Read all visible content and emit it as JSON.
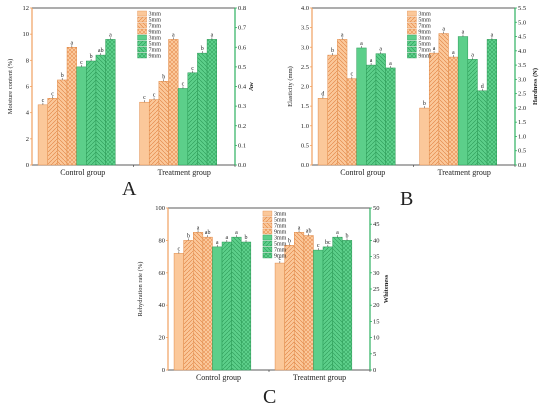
{
  "panels": [
    {
      "id": "A",
      "letter": "A",
      "ylabel_left": "Moisture content (%)",
      "ylabel_right": "Aw",
      "left_color": "#f0a060",
      "right_color": "#2db060",
      "left_ticks": [
        "0",
        "2",
        "4",
        "6",
        "8",
        "10",
        "12"
      ],
      "right_ticks": [
        "0.0",
        "0.1",
        "0.2",
        "0.3",
        "0.4",
        "0.5",
        "0.6",
        "0.7",
        "0.8"
      ],
      "groups": [
        "Control group",
        "Treatment group"
      ],
      "legend": [
        "3mm",
        "5mm",
        "7mm",
        "9mm",
        "3mm",
        "5mm",
        "7mm",
        "9mm"
      ]
    },
    {
      "id": "B",
      "letter": "B",
      "ylabel_left": "Elasticity (mm)",
      "ylabel_right": "Hardness (N)",
      "left_color": "#f0a060",
      "right_color": "#2db060",
      "left_ticks": [
        "0.0",
        "0.5",
        "1.0",
        "1.5",
        "2.0",
        "2.5",
        "3.0",
        "3.5",
        "4.0"
      ],
      "right_ticks": [
        "0.0",
        "0.5",
        "1.0",
        "1.5",
        "2.0",
        "2.5",
        "3.0",
        "3.5",
        "4.0",
        "4.5",
        "5.0",
        "5.5"
      ],
      "groups": [
        "Control group",
        "Treatment group"
      ],
      "legend": [
        "3mm",
        "5mm",
        "7mm",
        "9mm",
        "3mm",
        "5mm",
        "7mm",
        "9mm"
      ]
    },
    {
      "id": "C",
      "letter": "C",
      "ylabel_left": "Rehydration rate (%)",
      "ylabel_right": "Whiteness",
      "left_color": "#f0a060",
      "right_color": "#2db060",
      "left_ticks": [
        "0",
        "20",
        "40",
        "60",
        "80",
        "100"
      ],
      "right_ticks": [
        "0",
        "5",
        "10",
        "15",
        "20",
        "25",
        "30",
        "35",
        "40",
        "45",
        "50"
      ],
      "groups": [
        "Control group",
        "Treatment group"
      ],
      "legend": [
        "3mm",
        "5mm",
        "7mm",
        "9mm",
        "3mm",
        "5mm",
        "7mm",
        "9mm"
      ]
    }
  ],
  "chart_data": [
    {
      "type": "bar",
      "panel": "A",
      "categories": [
        "Control group",
        "Treatment group"
      ],
      "ylabel": "Moisture content (%)",
      "ylabel_right": "Aw",
      "ylim": [
        0,
        12
      ],
      "ylim_right": [
        0,
        0.8
      ],
      "series": [
        {
          "name": "3mm",
          "axis": "left",
          "values": [
            4.6,
            4.8
          ],
          "sig": [
            "c",
            "c"
          ]
        },
        {
          "name": "5mm",
          "axis": "left",
          "values": [
            5.1,
            5.0
          ],
          "sig": [
            "c",
            "c"
          ]
        },
        {
          "name": "7mm",
          "axis": "left",
          "values": [
            6.5,
            6.4
          ],
          "sig": [
            "b",
            "b"
          ]
        },
        {
          "name": "9mm",
          "axis": "left",
          "values": [
            9.0,
            9.6
          ],
          "sig": [
            "a",
            "a"
          ]
        },
        {
          "name": "3mm",
          "axis": "right",
          "values": [
            0.5,
            0.39
          ],
          "sig": [
            "c",
            "c"
          ]
        },
        {
          "name": "5mm",
          "axis": "right",
          "values": [
            0.53,
            0.47
          ],
          "sig": [
            "b",
            "c"
          ]
        },
        {
          "name": "7mm",
          "axis": "right",
          "values": [
            0.56,
            0.57
          ],
          "sig": [
            "ab",
            "b"
          ]
        },
        {
          "name": "9mm",
          "axis": "right",
          "values": [
            0.64,
            0.64
          ],
          "sig": [
            "a",
            "a"
          ]
        }
      ]
    },
    {
      "type": "bar",
      "panel": "B",
      "categories": [
        "Control group",
        "Treatment group"
      ],
      "ylabel": "Elasticity (mm)",
      "ylabel_right": "Hardness (N)",
      "ylim": [
        0,
        4.0
      ],
      "ylim_right": [
        0,
        5.5
      ],
      "series": [
        {
          "name": "3mm",
          "axis": "left",
          "values": [
            1.7,
            1.45
          ],
          "sig": [
            "d",
            "b"
          ]
        },
        {
          "name": "5mm",
          "axis": "left",
          "values": [
            2.8,
            2.85
          ],
          "sig": [
            "b",
            "a"
          ]
        },
        {
          "name": "7mm",
          "axis": "left",
          "values": [
            3.2,
            3.35
          ],
          "sig": [
            "a",
            "a"
          ]
        },
        {
          "name": "9mm",
          "axis": "left",
          "values": [
            2.2,
            2.75
          ],
          "sig": [
            "c",
            "a"
          ]
        },
        {
          "name": "3mm",
          "axis": "right",
          "values": [
            4.1,
            4.5
          ],
          "sig": [
            "a",
            "a"
          ]
        },
        {
          "name": "5mm",
          "axis": "right",
          "values": [
            3.5,
            3.7
          ],
          "sig": [
            "a",
            "a"
          ]
        },
        {
          "name": "7mm",
          "axis": "right",
          "values": [
            3.9,
            2.6
          ],
          "sig": [
            "a",
            "d"
          ]
        },
        {
          "name": "9mm",
          "axis": "right",
          "values": [
            3.4,
            4.4
          ],
          "sig": [
            "a",
            "a"
          ]
        }
      ]
    },
    {
      "type": "bar",
      "panel": "C",
      "categories": [
        "Control group",
        "Treatment group"
      ],
      "ylabel": "Rehydration rate (%)",
      "ylabel_right": "Whiteness",
      "ylim": [
        0,
        100
      ],
      "ylim_right": [
        0,
        50
      ],
      "series": [
        {
          "name": "3mm",
          "axis": "left",
          "values": [
            72,
            66
          ],
          "sig": [
            "c",
            "c"
          ]
        },
        {
          "name": "5mm",
          "axis": "left",
          "values": [
            80,
            77
          ],
          "sig": [
            "b",
            "b"
          ]
        },
        {
          "name": "7mm",
          "axis": "left",
          "values": [
            85,
            85
          ],
          "sig": [
            "a",
            "a"
          ]
        },
        {
          "name": "9mm",
          "axis": "left",
          "values": [
            82,
            83
          ],
          "sig": [
            "ab",
            "ab"
          ]
        },
        {
          "name": "3mm",
          "axis": "right",
          "values": [
            38,
            37
          ],
          "sig": [
            "a",
            "c"
          ]
        },
        {
          "name": "5mm",
          "axis": "right",
          "values": [
            39.5,
            38
          ],
          "sig": [
            "a",
            "bc"
          ]
        },
        {
          "name": "7mm",
          "axis": "right",
          "values": [
            41,
            41
          ],
          "sig": [
            "a",
            "a"
          ]
        },
        {
          "name": "9mm",
          "axis": "right",
          "values": [
            39.5,
            40
          ],
          "sig": [
            "b",
            "b"
          ]
        }
      ]
    }
  ]
}
